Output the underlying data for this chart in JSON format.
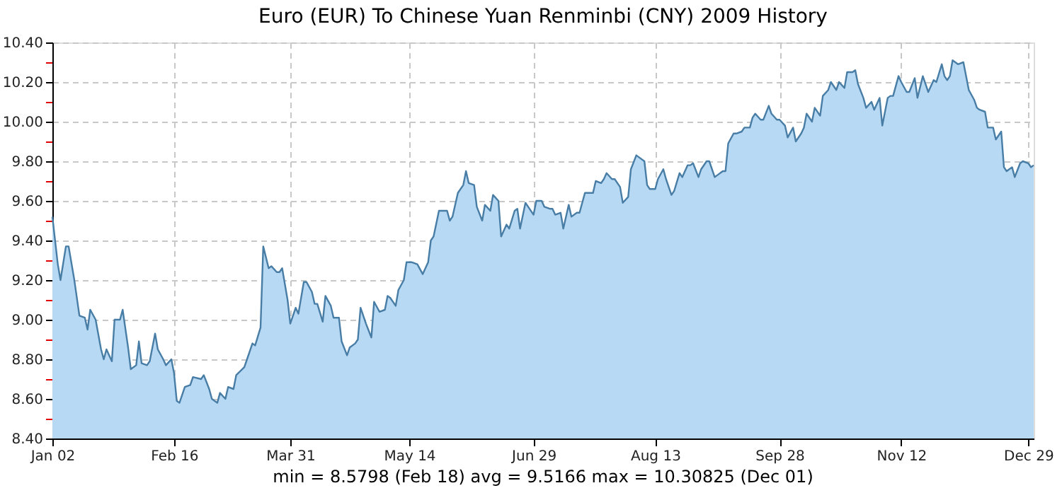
{
  "chart_data": {
    "type": "area",
    "title": "Euro (EUR) To Chinese Yuan Renminbi (CNY) 2009 History",
    "annotations": [
      "min = 8.5798 (Feb 18)   avg = 9.5166   max = 10.30825 (Dec 01)"
    ],
    "x": [
      "2009-01-02",
      "2009-01-04",
      "2009-01-05",
      "2009-01-07",
      "2009-01-08",
      "2009-01-10",
      "2009-01-12",
      "2009-01-14",
      "2009-01-15",
      "2009-01-16",
      "2009-01-18",
      "2009-01-20",
      "2009-01-21",
      "2009-01-22",
      "2009-01-24",
      "2009-01-25",
      "2009-01-27",
      "2009-01-28",
      "2009-01-30",
      "2009-01-31",
      "2009-02-02",
      "2009-02-03",
      "2009-02-04",
      "2009-02-06",
      "2009-02-07",
      "2009-02-09",
      "2009-02-10",
      "2009-02-12",
      "2009-02-13",
      "2009-02-15",
      "2009-02-16",
      "2009-02-17",
      "2009-02-18",
      "2009-02-20",
      "2009-02-22",
      "2009-02-23",
      "2009-02-26",
      "2009-02-27",
      "2009-03-01",
      "2009-03-02",
      "2009-03-04",
      "2009-03-05",
      "2009-03-07",
      "2009-03-08",
      "2009-03-10",
      "2009-03-11",
      "2009-03-14",
      "2009-03-15",
      "2009-03-17",
      "2009-03-18",
      "2009-03-20",
      "2009-03-21",
      "2009-03-23",
      "2009-03-24",
      "2009-03-26",
      "2009-03-27",
      "2009-03-28",
      "2009-03-30",
      "2009-03-31",
      "2009-04-02",
      "2009-04-03",
      "2009-04-05",
      "2009-04-06",
      "2009-04-08",
      "2009-04-09",
      "2009-04-10",
      "2009-04-12",
      "2009-04-13",
      "2009-04-15",
      "2009-04-16",
      "2009-04-18",
      "2009-04-19",
      "2009-04-21",
      "2009-04-22",
      "2009-04-24",
      "2009-04-25",
      "2009-04-26",
      "2009-04-28",
      "2009-04-30",
      "2009-05-01",
      "2009-05-03",
      "2009-05-05",
      "2009-05-06",
      "2009-05-07",
      "2009-05-09",
      "2009-05-10",
      "2009-05-12",
      "2009-05-13",
      "2009-05-15",
      "2009-05-17",
      "2009-05-19",
      "2009-05-21",
      "2009-05-22",
      "2009-05-23",
      "2009-05-25",
      "2009-05-26",
      "2009-05-28",
      "2009-05-29",
      "2009-05-30",
      "2009-06-01",
      "2009-06-03",
      "2009-06-04",
      "2009-06-05",
      "2009-06-07",
      "2009-06-08",
      "2009-06-10",
      "2009-06-11",
      "2009-06-13",
      "2009-06-14",
      "2009-06-16",
      "2009-06-17",
      "2009-06-19",
      "2009-06-20",
      "2009-06-22",
      "2009-06-23",
      "2009-06-24",
      "2009-06-26",
      "2009-06-27",
      "2009-06-29",
      "2009-06-30",
      "2009-07-02",
      "2009-07-03",
      "2009-07-05",
      "2009-07-06",
      "2009-07-07",
      "2009-07-09",
      "2009-07-10",
      "2009-07-12",
      "2009-07-13",
      "2009-07-15",
      "2009-07-16",
      "2009-07-18",
      "2009-07-19",
      "2009-07-21",
      "2009-07-22",
      "2009-07-24",
      "2009-07-25",
      "2009-07-26",
      "2009-07-28",
      "2009-07-29",
      "2009-07-31",
      "2009-08-01",
      "2009-08-03",
      "2009-08-04",
      "2009-08-06",
      "2009-08-07",
      "2009-08-09",
      "2009-08-10",
      "2009-08-11",
      "2009-08-13",
      "2009-08-14",
      "2009-08-16",
      "2009-08-17",
      "2009-08-19",
      "2009-08-20",
      "2009-08-22",
      "2009-08-23",
      "2009-08-25",
      "2009-08-26",
      "2009-08-27",
      "2009-08-29",
      "2009-08-30",
      "2009-09-01",
      "2009-09-02",
      "2009-09-04",
      "2009-09-05",
      "2009-09-07",
      "2009-09-08",
      "2009-09-09",
      "2009-09-11",
      "2009-09-12",
      "2009-09-14",
      "2009-09-15",
      "2009-09-17",
      "2009-09-18",
      "2009-09-19",
      "2009-09-21",
      "2009-09-22",
      "2009-09-24",
      "2009-09-25",
      "2009-09-27",
      "2009-09-28",
      "2009-09-30",
      "2009-10-01",
      "2009-10-03",
      "2009-10-04",
      "2009-10-06",
      "2009-10-07",
      "2009-10-08",
      "2009-10-10",
      "2009-10-11",
      "2009-10-13",
      "2009-10-14",
      "2009-10-16",
      "2009-10-17",
      "2009-10-19",
      "2009-10-20",
      "2009-10-22",
      "2009-10-23",
      "2009-10-25",
      "2009-10-26",
      "2009-10-27",
      "2009-10-29",
      "2009-10-30",
      "2009-11-01",
      "2009-11-02",
      "2009-11-04",
      "2009-11-05",
      "2009-11-07",
      "2009-11-08",
      "2009-11-09",
      "2009-11-11",
      "2009-11-12",
      "2009-11-14",
      "2009-11-15",
      "2009-11-17",
      "2009-11-18",
      "2009-11-20",
      "2009-11-21",
      "2009-11-22",
      "2009-11-24",
      "2009-11-25",
      "2009-11-27",
      "2009-11-28",
      "2009-11-29",
      "2009-11-30",
      "2009-12-01",
      "2009-12-03",
      "2009-12-05",
      "2009-12-07",
      "2009-12-09",
      "2009-12-10",
      "2009-12-11",
      "2009-12-13",
      "2009-12-14",
      "2009-12-16",
      "2009-12-17",
      "2009-12-19",
      "2009-12-20",
      "2009-12-21",
      "2009-12-23",
      "2009-12-24",
      "2009-12-26",
      "2009-12-27",
      "2009-12-29",
      "2009-12-30",
      "2009-12-31"
    ],
    "series": [
      {
        "color": "#b8d9f3",
        "values": [
          9.52,
          9.28,
          9.2,
          9.37,
          9.37,
          9.21,
          9.02,
          9.01,
          8.95,
          9.05,
          9.0,
          8.85,
          8.8,
          8.85,
          8.79,
          9.0,
          9.0,
          9.05,
          8.86,
          8.75,
          8.77,
          8.89,
          8.78,
          8.77,
          8.79,
          8.93,
          8.85,
          8.8,
          8.77,
          8.8,
          8.73,
          8.59,
          8.58,
          8.66,
          8.67,
          8.71,
          8.7,
          8.72,
          8.65,
          8.6,
          8.58,
          8.63,
          8.6,
          8.66,
          8.65,
          8.72,
          8.76,
          8.8,
          8.88,
          8.87,
          8.96,
          9.37,
          9.26,
          9.27,
          9.24,
          9.24,
          9.26,
          9.1,
          8.98,
          9.06,
          9.03,
          9.19,
          9.19,
          9.14,
          9.08,
          9.08,
          8.99,
          9.12,
          9.07,
          9.01,
          9.01,
          8.89,
          8.82,
          8.86,
          8.88,
          8.9,
          9.06,
          8.98,
          8.91,
          9.09,
          9.04,
          9.05,
          9.12,
          9.11,
          9.07,
          9.15,
          9.2,
          9.29,
          9.29,
          9.28,
          9.23,
          9.29,
          9.4,
          9.42,
          9.55,
          9.55,
          9.55,
          9.5,
          9.52,
          9.64,
          9.68,
          9.75,
          9.69,
          9.68,
          9.57,
          9.5,
          9.58,
          9.55,
          9.63,
          9.6,
          9.42,
          9.48,
          9.46,
          9.55,
          9.56,
          9.46,
          9.59,
          9.57,
          9.53,
          9.6,
          9.6,
          9.57,
          9.56,
          9.56,
          9.53,
          9.54,
          9.46,
          9.58,
          9.52,
          9.54,
          9.54,
          9.64,
          9.64,
          9.64,
          9.7,
          9.69,
          9.71,
          9.74,
          9.71,
          9.71,
          9.67,
          9.59,
          9.62,
          9.76,
          9.83,
          9.82,
          9.8,
          9.68,
          9.66,
          9.66,
          9.71,
          9.76,
          9.71,
          9.63,
          9.65,
          9.74,
          9.72,
          9.78,
          9.78,
          9.79,
          9.72,
          9.76,
          9.8,
          9.8,
          9.72,
          9.73,
          9.75,
          9.75,
          9.89,
          9.94,
          9.94,
          9.95,
          9.97,
          9.97,
          10.02,
          10.04,
          10.01,
          10.01,
          10.08,
          10.04,
          10.01,
          10.01,
          9.98,
          9.92,
          9.97,
          9.9,
          9.94,
          9.97,
          10.04,
          10.0,
          10.07,
          10.03,
          10.13,
          10.16,
          10.2,
          10.16,
          10.2,
          10.17,
          10.25,
          10.25,
          10.26,
          10.19,
          10.12,
          10.07,
          10.1,
          10.06,
          10.12,
          9.98,
          10.12,
          10.13,
          10.13,
          10.23,
          10.2,
          10.15,
          10.15,
          10.22,
          10.12,
          10.23,
          10.19,
          10.15,
          10.21,
          10.2,
          10.29,
          10.23,
          10.21,
          10.23,
          10.31,
          10.29,
          10.3,
          10.16,
          10.11,
          10.07,
          10.06,
          10.05,
          9.97,
          9.97,
          9.91,
          9.95,
          9.77,
          9.75,
          9.77,
          9.72,
          9.79,
          9.8,
          9.79,
          9.77,
          9.78
        ]
      }
    ],
    "xlim": [
      "2009-01-02",
      "2009-12-31"
    ],
    "xticks": [
      {
        "value": "2009-01-02",
        "label": "Jan 02"
      },
      {
        "value": "2009-02-16",
        "label": "Feb 16"
      },
      {
        "value": "2009-03-31",
        "label": "Mar 31"
      },
      {
        "value": "2009-05-14",
        "label": "May 14"
      },
      {
        "value": "2009-06-29",
        "label": "Jun 29"
      },
      {
        "value": "2009-08-13",
        "label": "Aug 13"
      },
      {
        "value": "2009-09-28",
        "label": "Sep 28"
      },
      {
        "value": "2009-11-12",
        "label": "Nov 12"
      },
      {
        "value": "2009-12-29",
        "label": "Dec 29"
      }
    ],
    "ylim": [
      8.4,
      10.4
    ],
    "yticks": [
      {
        "value": 8.4,
        "label": "8.40"
      },
      {
        "value": 8.5,
        "label": null
      },
      {
        "value": 8.6,
        "label": "8.60"
      },
      {
        "value": 8.7,
        "label": null
      },
      {
        "value": 8.8,
        "label": "8.80"
      },
      {
        "value": 8.9,
        "label": null
      },
      {
        "value": 9.0,
        "label": "9.00"
      },
      {
        "value": 9.1,
        "label": null
      },
      {
        "value": 9.2,
        "label": "9.20"
      },
      {
        "value": 9.3,
        "label": null
      },
      {
        "value": 9.4,
        "label": "9.40"
      },
      {
        "value": 9.5,
        "label": null
      },
      {
        "value": 9.6,
        "label": "9.60"
      },
      {
        "value": 9.7,
        "label": null
      },
      {
        "value": 9.8,
        "label": "9.80"
      },
      {
        "value": 9.9,
        "label": null
      },
      {
        "value": 10.0,
        "label": "10.00"
      },
      {
        "value": 10.1,
        "label": null
      },
      {
        "value": 10.2,
        "label": "10.20"
      },
      {
        "value": 10.3,
        "label": null
      },
      {
        "value": 10.4,
        "label": "10.40"
      }
    ],
    "grid": true,
    "legend": false
  }
}
